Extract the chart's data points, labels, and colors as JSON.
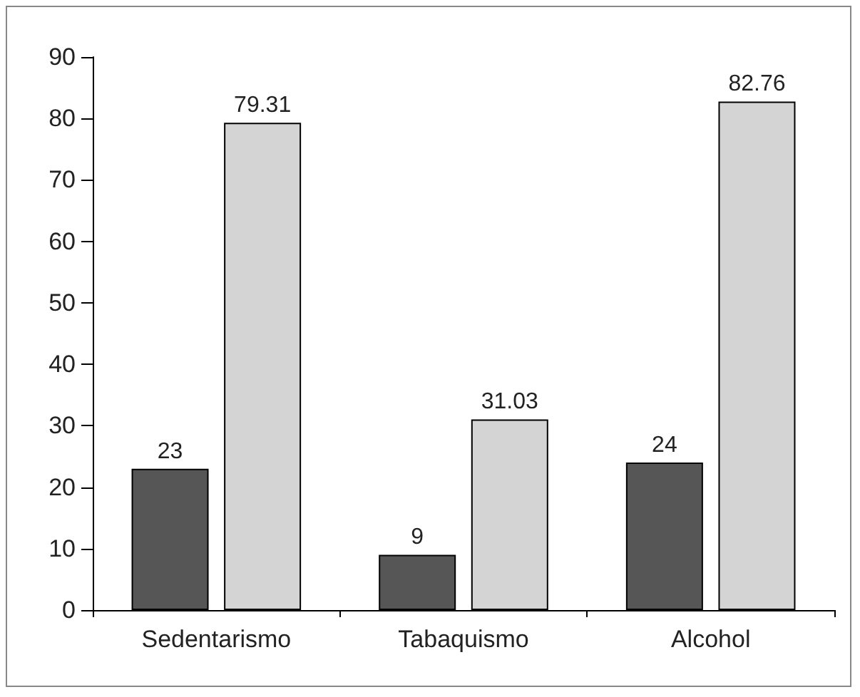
{
  "chart_data": {
    "type": "bar",
    "categories": [
      "Sedentarismo",
      "Tabaquismo",
      "Alcohol"
    ],
    "series": [
      {
        "color": "#565656",
        "values": [
          23,
          9,
          24
        ]
      },
      {
        "color": "#d4d4d4",
        "values": [
          79.31,
          31.03,
          82.76
        ]
      }
    ],
    "ylim": [
      0,
      90
    ],
    "yticks": [
      0,
      10,
      20,
      30,
      40,
      50,
      60,
      70,
      80,
      90
    ],
    "grid": false,
    "data_labels": true
  }
}
